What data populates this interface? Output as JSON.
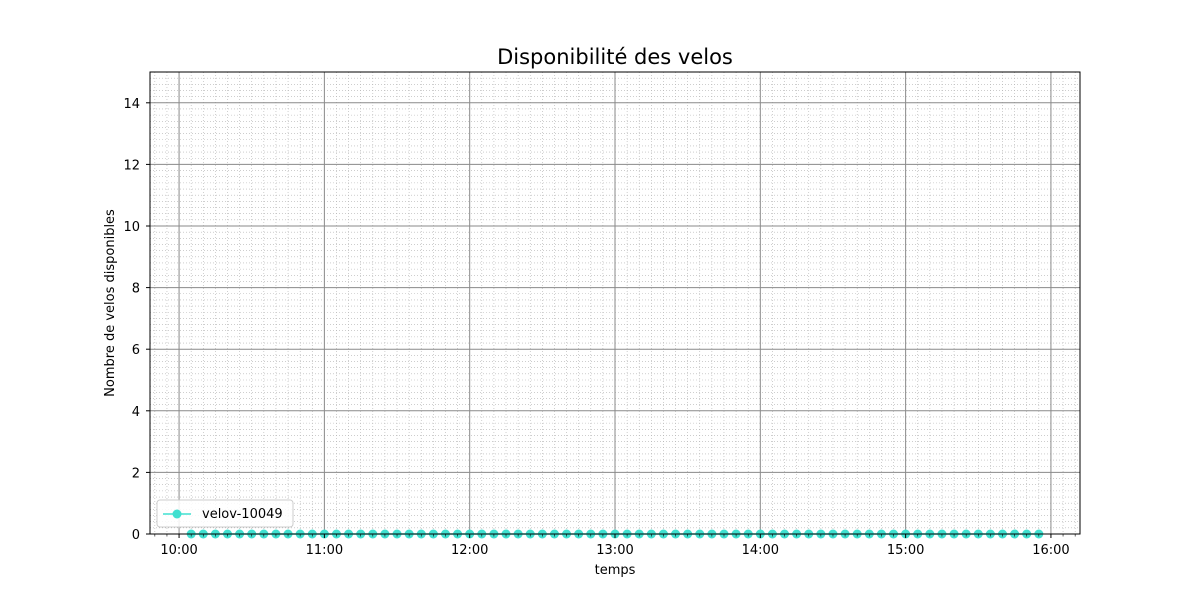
{
  "chart_data": {
    "type": "line",
    "title": "Disponibilité des velos",
    "xlabel": "temps",
    "ylabel": "Nombre de velos disponibles",
    "x_tick_labels": [
      "10:00",
      "11:00",
      "12:00",
      "13:00",
      "14:00",
      "15:00",
      "16:00"
    ],
    "y_tick_labels": [
      "0",
      "2",
      "4",
      "6",
      "8",
      "10",
      "12",
      "14"
    ],
    "xlim": [
      "09:48",
      "16:12"
    ],
    "ylim": [
      0,
      15
    ],
    "grid": "major and minor",
    "legend_position": "lower-left",
    "series": [
      {
        "name": "velov-10049",
        "color": "#40e0d0",
        "marker": "circle",
        "x": [
          "10:05",
          "10:10",
          "10:15",
          "10:20",
          "10:25",
          "10:30",
          "10:35",
          "10:40",
          "10:45",
          "10:50",
          "10:55",
          "11:00",
          "11:05",
          "11:10",
          "11:15",
          "11:20",
          "11:25",
          "11:30",
          "11:35",
          "11:40",
          "11:45",
          "11:50",
          "11:55",
          "12:00",
          "12:05",
          "12:10",
          "12:15",
          "12:20",
          "12:25",
          "12:30",
          "12:35",
          "12:40",
          "12:45",
          "12:50",
          "12:55",
          "13:00",
          "13:05",
          "13:10",
          "13:15",
          "13:20",
          "13:25",
          "13:30",
          "13:35",
          "13:40",
          "13:45",
          "13:50",
          "13:55",
          "14:00",
          "14:05",
          "14:10",
          "14:15",
          "14:20",
          "14:25",
          "14:30",
          "14:35",
          "14:40",
          "14:45",
          "14:50",
          "14:55",
          "15:00",
          "15:05",
          "15:10",
          "15:15",
          "15:20",
          "15:25",
          "15:30",
          "15:35",
          "15:40",
          "15:45",
          "15:50",
          "15:55"
        ],
        "y": [
          0,
          0,
          0,
          0,
          0,
          0,
          0,
          0,
          0,
          0,
          0,
          0,
          0,
          0,
          0,
          0,
          0,
          0,
          0,
          0,
          0,
          0,
          0,
          0,
          0,
          0,
          0,
          0,
          0,
          0,
          0,
          0,
          0,
          0,
          0,
          0,
          0,
          0,
          0,
          0,
          0,
          0,
          0,
          0,
          0,
          0,
          0,
          0,
          0,
          0,
          0,
          0,
          0,
          0,
          0,
          0,
          0,
          0,
          0,
          0,
          0,
          0,
          0,
          0,
          0,
          0,
          0,
          0,
          0,
          0,
          0
        ]
      }
    ]
  }
}
